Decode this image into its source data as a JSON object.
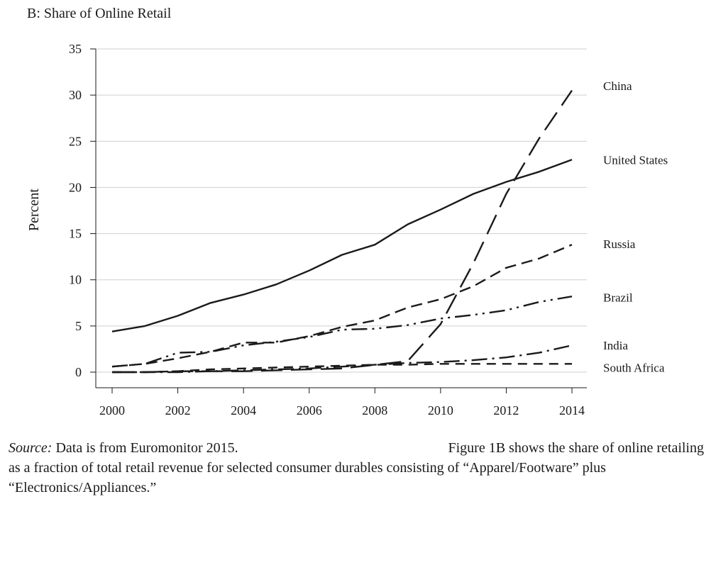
{
  "chart_data": {
    "type": "line",
    "title": "B: Share of Online Retail",
    "ylabel": "Percent",
    "xlabel": "",
    "xlim": [
      2000,
      2014
    ],
    "ylim": [
      0,
      35
    ],
    "x_ticks": [
      2000,
      2002,
      2004,
      2006,
      2008,
      2010,
      2012,
      2014
    ],
    "y_ticks": [
      0,
      5,
      10,
      15,
      20,
      25,
      30,
      35
    ],
    "grid": "horizontal",
    "legend": "direct labels at right end of lines",
    "x": [
      2000,
      2001,
      2002,
      2003,
      2004,
      2005,
      2006,
      2007,
      2008,
      2009,
      2010,
      2011,
      2012,
      2013,
      2014
    ],
    "series": [
      {
        "name": "China",
        "style": "long-dash",
        "label_y": 31,
        "values": [
          0.0,
          0.0,
          0.1,
          0.1,
          0.1,
          0.2,
          0.3,
          0.4,
          0.8,
          1.2,
          5.2,
          11.8,
          19.3,
          25.3,
          30.5
        ]
      },
      {
        "name": "United States",
        "style": "solid",
        "label_y": 23,
        "values": [
          4.4,
          5.0,
          6.1,
          7.5,
          8.4,
          9.5,
          11.0,
          12.7,
          13.8,
          16.0,
          17.6,
          19.3,
          20.6,
          21.7,
          23.0
        ]
      },
      {
        "name": "Russia",
        "style": "dash",
        "label_y": 13.9,
        "values": [
          0.6,
          0.9,
          1.5,
          2.2,
          3.2,
          3.2,
          3.9,
          4.9,
          5.6,
          7.0,
          7.9,
          9.3,
          11.3,
          12.3,
          13.8
        ]
      },
      {
        "name": "Brazil",
        "style": "dash-dot-dot",
        "label_y": 8.1,
        "values": [
          0.6,
          0.9,
          2.1,
          2.2,
          2.9,
          3.3,
          3.8,
          4.6,
          4.7,
          5.1,
          5.8,
          6.2,
          6.7,
          7.6,
          8.2
        ]
      },
      {
        "name": "India",
        "style": "dash-dot",
        "label_y": 2.9,
        "values": [
          0.0,
          0.0,
          0.0,
          0.1,
          0.2,
          0.3,
          0.4,
          0.6,
          0.8,
          1.0,
          1.1,
          1.3,
          1.6,
          2.1,
          2.9
        ]
      },
      {
        "name": "South Africa",
        "style": "medium-dash",
        "label_y": 0.5,
        "values": [
          0.0,
          0.0,
          0.1,
          0.3,
          0.4,
          0.5,
          0.6,
          0.7,
          0.8,
          0.8,
          0.9,
          0.9,
          0.9,
          0.9,
          0.9
        ]
      }
    ]
  },
  "caption": {
    "source_label": "Source:",
    "source_text": " Data is from Euromonitor 2015.",
    "note_part1": "Figure 1B shows the share of online retailing",
    "note_part2": "as a fraction of total retail revenue for selected consumer durables consisting of “Apparel/Footware” plus",
    "note_part3": "“Electronics/Appliances.”"
  }
}
